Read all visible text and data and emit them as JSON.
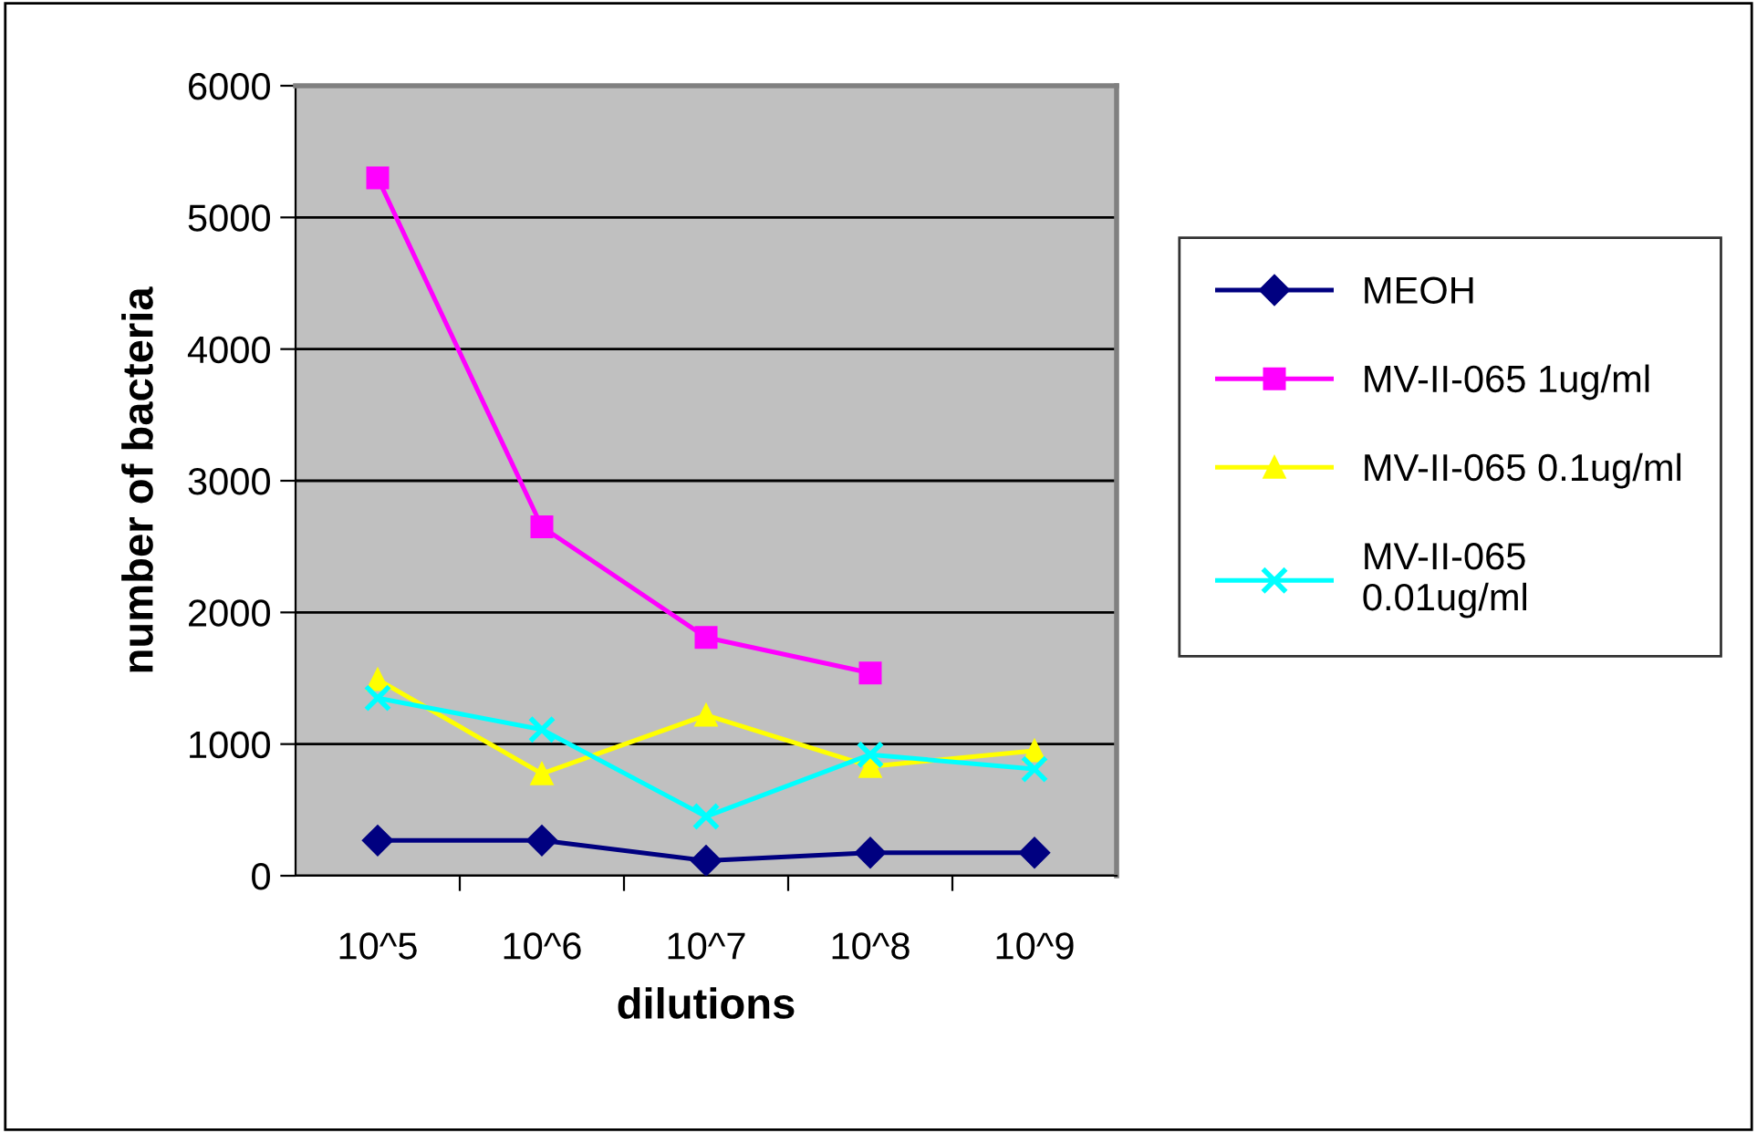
{
  "chart_data": {
    "type": "line",
    "xlabel": "dilutions",
    "ylabel": "number of bacteria",
    "categories": [
      "10^5",
      "10^6",
      "10^7",
      "10^8",
      "10^9"
    ],
    "ylim": [
      0,
      6000
    ],
    "yticks": [
      0,
      1000,
      2000,
      3000,
      4000,
      5000,
      6000
    ],
    "grid": "y",
    "legend": "right",
    "series": [
      {
        "name": "MEOH",
        "color": "#000080",
        "marker": "diamond",
        "values": [
          268,
          268,
          115,
          175,
          175
        ]
      },
      {
        "name": "MV-II-065 1ug/ml",
        "color": "#ff00ff",
        "marker": "square",
        "values": [
          5300,
          2650,
          1810,
          1540,
          null
        ]
      },
      {
        "name": "MV-II-065 0.1ug/ml",
        "color": "#ffff00",
        "marker": "triangle",
        "values": [
          1490,
          775,
          1220,
          830,
          950
        ]
      },
      {
        "name": "MV-II-065\n0.01ug/ml",
        "color": "#00ffff",
        "marker": "cross",
        "values": [
          1350,
          1110,
          450,
          920,
          810
        ]
      }
    ]
  }
}
